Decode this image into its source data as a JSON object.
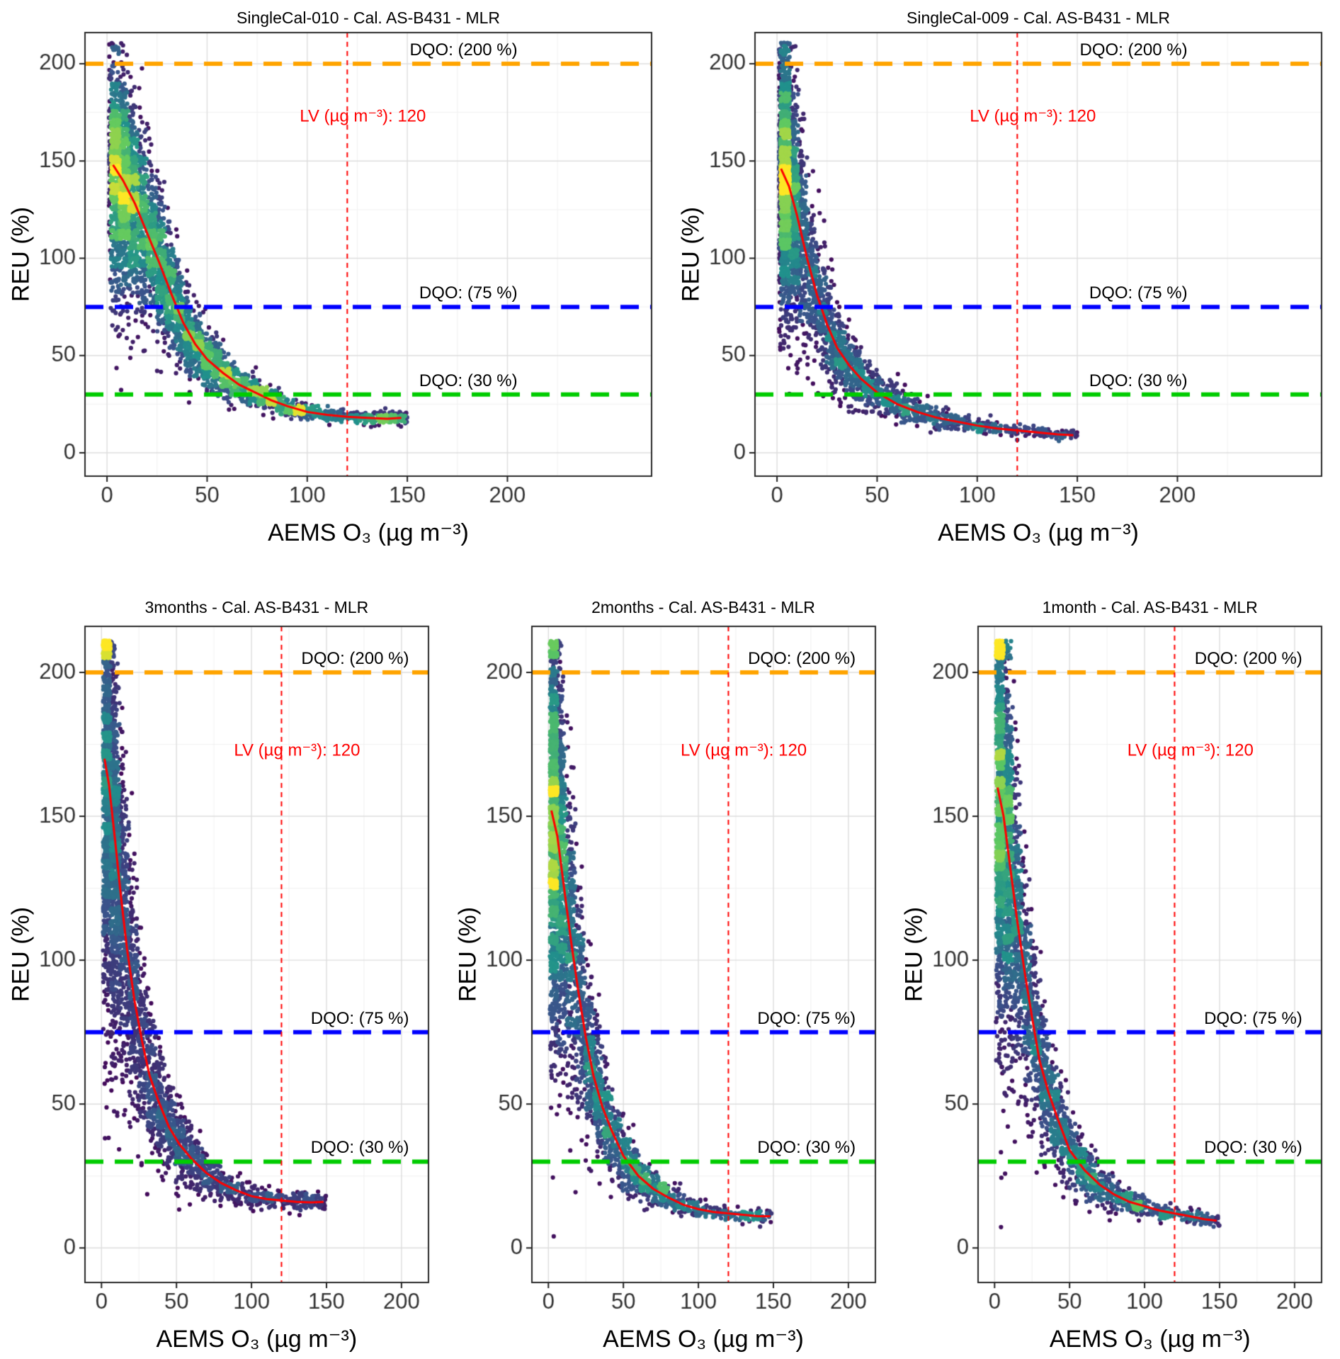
{
  "axes": {
    "x_label": "AEMS O₃ (µg m⁻³)",
    "y_label": "REU (%)",
    "x_ticks": [
      0,
      50,
      100,
      150,
      200
    ],
    "y_ticks": [
      0,
      50,
      100,
      150,
      200
    ],
    "ylim": [
      -12,
      216
    ]
  },
  "reference_lines": {
    "horizontal": [
      {
        "y": 200,
        "color": "#FFA400",
        "label": "DQO: (200 %)"
      },
      {
        "y": 75,
        "color": "#0000FF",
        "label": "DQO: (75 %)"
      },
      {
        "y": 30,
        "color": "#00CC00",
        "label": "DQO: (30 %)"
      }
    ],
    "vertical": {
      "x": 120,
      "color": "#FF0000",
      "label": "LV (µg m⁻³): 120",
      "label_y": 173
    }
  },
  "palette": {
    "viridis": [
      "#440154",
      "#3B528B",
      "#21918C",
      "#5EC962",
      "#FDE725"
    ],
    "fit_color": "#FF0000",
    "grid_major": "#DEDEDE",
    "grid_minor": "#F1F1F1",
    "panel_border": "#2A2A2A",
    "tick_text": "#333333"
  },
  "chart_data": [
    {
      "type": "scatter",
      "title": "SingleCal-010 - Cal. AS-B431 - MLR",
      "xlabel": "AEMS O₃ (µg m⁻³)",
      "ylabel": "REU (%)",
      "xlim": [
        -11,
        272
      ],
      "x_range_observed": [
        1,
        150
      ],
      "y_range_observed": [
        12,
        210
      ],
      "fit_line": {
        "x": [
          3,
          8,
          14,
          20,
          26,
          32,
          38,
          44,
          50,
          58,
          66,
          74,
          82,
          90,
          100,
          110,
          120,
          130,
          140,
          147
        ],
        "y": [
          148,
          140,
          128,
          113,
          98,
          82,
          67,
          56,
          48,
          41,
          35,
          31,
          27,
          24,
          21,
          19.5,
          18.5,
          18,
          17.5,
          18
        ]
      },
      "scatter": {
        "n": 3800,
        "seed": 101,
        "column_fraction": 0.14,
        "column_sd": 8,
        "tail_mean": 40,
        "rel_noise_low_x": 0.21,
        "rel_noise_high_x": 0.1
      }
    },
    {
      "type": "scatter",
      "title": "SingleCal-009 - Cal. AS-B431 - MLR",
      "xlabel": "AEMS O₃ (µg m⁻³)",
      "ylabel": "REU (%)",
      "xlim": [
        -11,
        272
      ],
      "x_range_observed": [
        1,
        150
      ],
      "y_range_observed": [
        6,
        210
      ],
      "fit_line": {
        "x": [
          2,
          6,
          10,
          15,
          20,
          25,
          30,
          36,
          42,
          50,
          60,
          70,
          80,
          90,
          100,
          110,
          120,
          130,
          140,
          148
        ],
        "y": [
          146,
          137,
          122,
          100,
          81,
          66,
          54,
          45,
          38,
          31,
          25,
          21,
          18,
          16,
          14,
          12.5,
          11.5,
          10.5,
          9.5,
          9
        ]
      },
      "scatter": {
        "n": 3200,
        "seed": 202,
        "column_fraction": 0.4,
        "column_sd": 5,
        "tail_mean": 40,
        "rel_noise_low_x": 0.26,
        "rel_noise_high_x": 0.13
      }
    },
    {
      "type": "scatter",
      "title": "3months - Cal. AS-B431 - MLR",
      "xlabel": "AEMS O₃ (µg m⁻³)",
      "ylabel": "REU (%)",
      "xlim": [
        -11,
        218
      ],
      "x_range_observed": [
        1,
        150
      ],
      "y_range_observed": [
        10,
        211
      ],
      "fit_line": {
        "x": [
          2,
          5,
          9,
          13,
          17,
          22,
          27,
          32,
          38,
          45,
          52,
          60,
          70,
          80,
          90,
          100,
          110,
          120,
          130,
          140,
          148
        ],
        "y": [
          170,
          161,
          142,
          122,
          104,
          86,
          72,
          60,
          51,
          42,
          36,
          31,
          26,
          22.5,
          20,
          18,
          17,
          16.5,
          16,
          15.8,
          16
        ]
      },
      "scatter": {
        "n": 3400,
        "seed": 303,
        "column_fraction": 0.36,
        "column_sd": 6,
        "tail_mean": 38,
        "rel_noise_low_x": 0.25,
        "rel_noise_high_x": 0.12
      }
    },
    {
      "type": "scatter",
      "title": "2months - Cal. AS-B431 - MLR",
      "xlabel": "AEMS O₃ (µg m⁻³)",
      "ylabel": "REU (%)",
      "xlim": [
        -11,
        218
      ],
      "x_range_observed": [
        1,
        150
      ],
      "y_range_observed": [
        7,
        211
      ],
      "fit_line": {
        "x": [
          2,
          6,
          10,
          15,
          20,
          25,
          30,
          36,
          42,
          50,
          60,
          70,
          80,
          90,
          100,
          110,
          120,
          130,
          140,
          148
        ],
        "y": [
          152,
          143,
          127,
          107,
          89,
          73,
          60,
          49,
          41,
          32,
          25,
          20.5,
          17.5,
          15,
          13.5,
          12.5,
          12,
          11.5,
          11,
          11
        ]
      },
      "scatter": {
        "n": 3300,
        "seed": 404,
        "column_fraction": 0.38,
        "column_sd": 5,
        "tail_mean": 38,
        "rel_noise_low_x": 0.25,
        "rel_noise_high_x": 0.12
      }
    },
    {
      "type": "scatter",
      "title": "1month - Cal. AS-B431 - MLR",
      "xlabel": "AEMS O₃ (µg m⁻³)",
      "ylabel": "REU (%)",
      "xlim": [
        -11,
        218
      ],
      "x_range_observed": [
        1,
        150
      ],
      "y_range_observed": [
        6,
        211
      ],
      "fit_line": {
        "x": [
          2,
          6,
          10,
          15,
          20,
          25,
          30,
          36,
          42,
          50,
          60,
          70,
          80,
          90,
          100,
          110,
          120,
          130,
          140,
          148
        ],
        "y": [
          160,
          150,
          134,
          114,
          96,
          80,
          65,
          54,
          45,
          34,
          27,
          22,
          18.5,
          16,
          14.5,
          13,
          12,
          11,
          10,
          9.5
        ]
      },
      "scatter": {
        "n": 3300,
        "seed": 505,
        "column_fraction": 0.36,
        "column_sd": 6,
        "tail_mean": 38,
        "rel_noise_low_x": 0.25,
        "rel_noise_high_x": 0.12
      }
    }
  ]
}
